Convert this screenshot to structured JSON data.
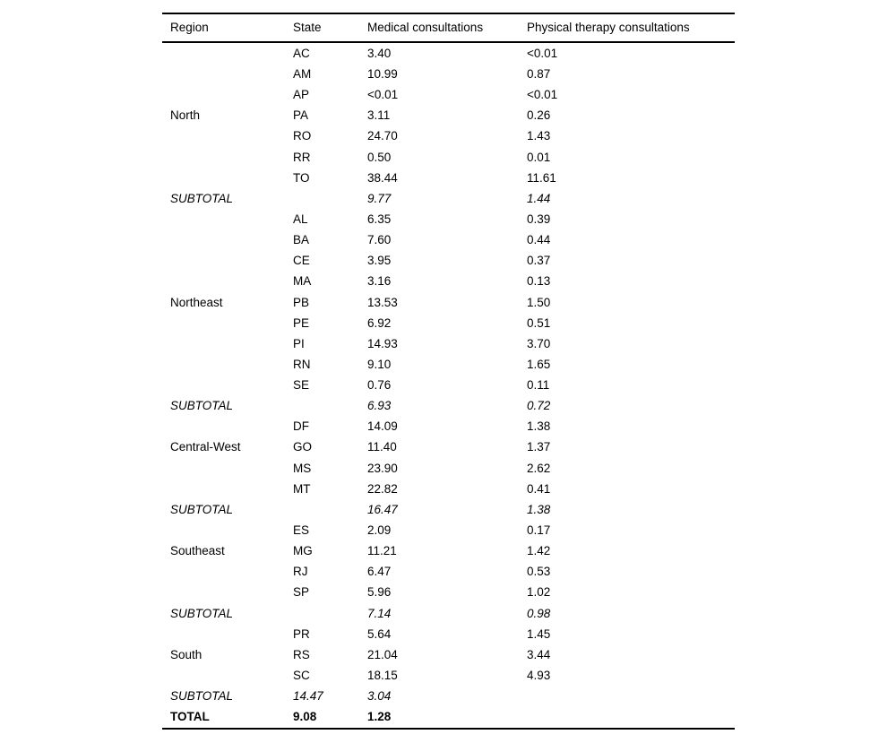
{
  "table": {
    "columns": [
      "Region",
      "State",
      "Medical consultations",
      "Physical therapy consultations"
    ],
    "rows": [
      {
        "region": "",
        "state": "AC",
        "medical": "3.40",
        "physical": "<0.01",
        "style": "normal"
      },
      {
        "region": "",
        "state": "AM",
        "medical": "10.99",
        "physical": "0.87",
        "style": "normal"
      },
      {
        "region": "",
        "state": "AP",
        "medical": "<0.01",
        "physical": "<0.01",
        "style": "normal"
      },
      {
        "region": "North",
        "state": "PA",
        "medical": "3.11",
        "physical": "0.26",
        "style": "normal"
      },
      {
        "region": "",
        "state": "RO",
        "medical": "24.70",
        "physical": "1.43",
        "style": "normal"
      },
      {
        "region": "",
        "state": "RR",
        "medical": "0.50",
        "physical": "0.01",
        "style": "normal"
      },
      {
        "region": "",
        "state": "TO",
        "medical": "38.44",
        "physical": "11.61",
        "style": "normal"
      },
      {
        "region": "SUBTOTAL",
        "state": "",
        "medical": "9.77",
        "physical": "1.44",
        "style": "subtotal"
      },
      {
        "region": "",
        "state": "AL",
        "medical": "6.35",
        "physical": "0.39",
        "style": "normal"
      },
      {
        "region": "",
        "state": "BA",
        "medical": "7.60",
        "physical": "0.44",
        "style": "normal"
      },
      {
        "region": "",
        "state": "CE",
        "medical": "3.95",
        "physical": "0.37",
        "style": "normal"
      },
      {
        "region": "",
        "state": "MA",
        "medical": "3.16",
        "physical": "0.13",
        "style": "normal"
      },
      {
        "region": "Northeast",
        "state": "PB",
        "medical": "13.53",
        "physical": "1.50",
        "style": "normal"
      },
      {
        "region": "",
        "state": "PE",
        "medical": "6.92",
        "physical": "0.51",
        "style": "normal"
      },
      {
        "region": "",
        "state": "PI",
        "medical": "14.93",
        "physical": "3.70",
        "style": "normal"
      },
      {
        "region": "",
        "state": "RN",
        "medical": "9.10",
        "physical": "1.65",
        "style": "normal"
      },
      {
        "region": "",
        "state": "SE",
        "medical": "0.76",
        "physical": "0.11",
        "style": "normal"
      },
      {
        "region": "SUBTOTAL",
        "state": "",
        "medical": "6.93",
        "physical": "0.72",
        "style": "subtotal"
      },
      {
        "region": "",
        "state": "DF",
        "medical": "14.09",
        "physical": "1.38",
        "style": "normal"
      },
      {
        "region": "Central-West",
        "state": "GO",
        "medical": "11.40",
        "physical": "1.37",
        "style": "normal"
      },
      {
        "region": "",
        "state": "MS",
        "medical": "23.90",
        "physical": "2.62",
        "style": "normal"
      },
      {
        "region": "",
        "state": "MT",
        "medical": "22.82",
        "physical": "0.41",
        "style": "normal"
      },
      {
        "region": "SUBTOTAL",
        "state": "",
        "medical": "16.47",
        "physical": "1.38",
        "style": "subtotal"
      },
      {
        "region": "",
        "state": "ES",
        "medical": "2.09",
        "physical": "0.17",
        "style": "normal"
      },
      {
        "region": "Southeast",
        "state": "MG",
        "medical": "11.21",
        "physical": "1.42",
        "style": "normal"
      },
      {
        "region": "",
        "state": "RJ",
        "medical": "6.47",
        "physical": "0.53",
        "style": "normal"
      },
      {
        "region": "",
        "state": "SP",
        "medical": "5.96",
        "physical": "1.02",
        "style": "normal"
      },
      {
        "region": "SUBTOTAL",
        "state": "",
        "medical": "7.14",
        "physical": "0.98",
        "style": "subtotal"
      },
      {
        "region": "",
        "state": "PR",
        "medical": "5.64",
        "physical": "1.45",
        "style": "normal"
      },
      {
        "region": "South",
        "state": "RS",
        "medical": "21.04",
        "physical": "3.44",
        "style": "normal"
      },
      {
        "region": "",
        "state": "SC",
        "medical": "18.15",
        "physical": "4.93",
        "style": "normal"
      },
      {
        "region": "SUBTOTAL",
        "state": "14.47",
        "medical": "3.04",
        "physical": "",
        "style": "subtotal"
      },
      {
        "region": "TOTAL",
        "state": "9.08",
        "medical": "1.28",
        "physical": "",
        "style": "total"
      }
    ]
  }
}
